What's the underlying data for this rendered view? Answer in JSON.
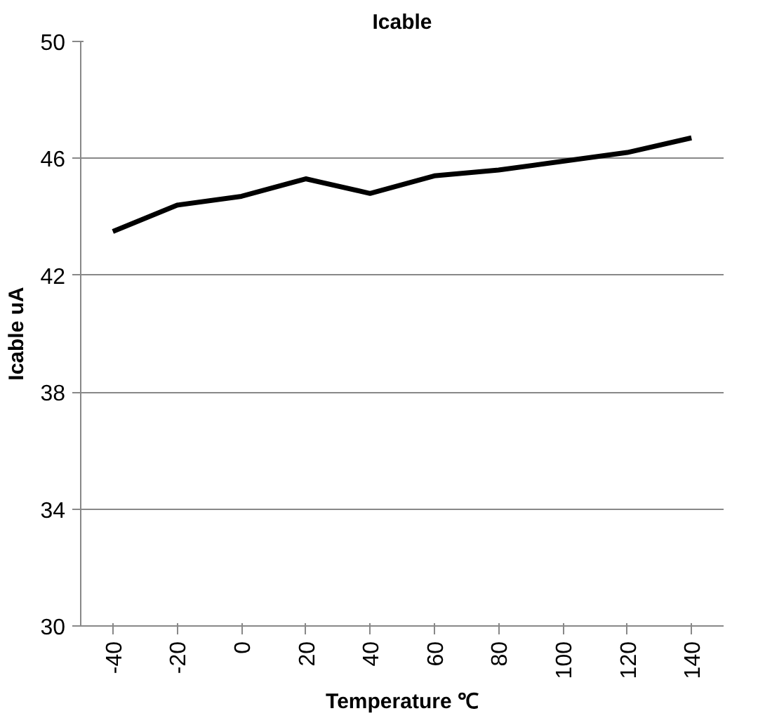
{
  "chart_data": {
    "type": "line",
    "title": "Icable",
    "xlabel": "Temperature ℃",
    "ylabel": "Icable uA",
    "categories": [
      "-40",
      "-20",
      "0",
      "20",
      "40",
      "60",
      "80",
      "100",
      "120",
      "140"
    ],
    "series": [
      {
        "color": "#000000",
        "values": [
          43.5,
          44.4,
          44.7,
          45.3,
          44.8,
          45.4,
          45.6,
          45.9,
          46.2,
          46.7
        ]
      }
    ],
    "ylim": [
      30,
      50
    ],
    "yticks": [
      30,
      34,
      38,
      42,
      46,
      50
    ],
    "grid": "y",
    "marker": "none",
    "line_style": "solid"
  }
}
